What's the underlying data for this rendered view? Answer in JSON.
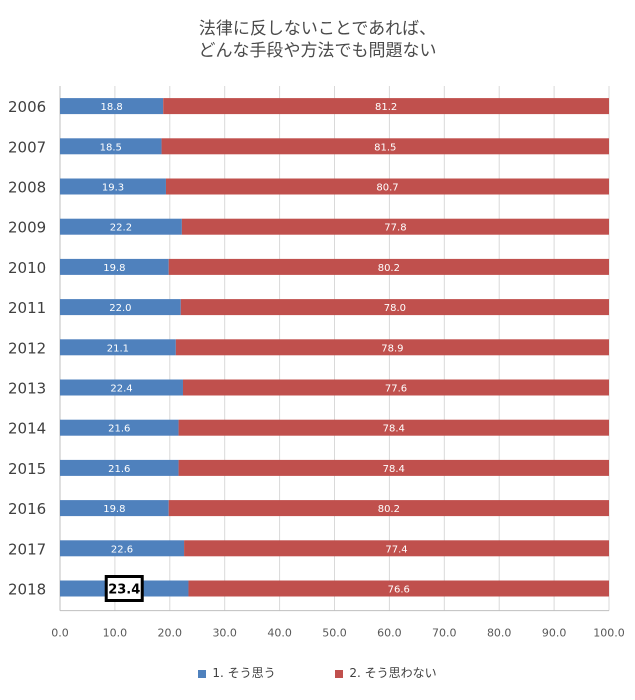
{
  "chart_data": {
    "type": "bar",
    "orientation": "horizontal",
    "stacked": true,
    "title": [
      "法律に反しないことであれば、",
      "どんな手段や方法でも問題ない"
    ],
    "categories": [
      "2006",
      "2007",
      "2008",
      "2009",
      "2010",
      "2011",
      "2012",
      "2013",
      "2014",
      "2015",
      "2016",
      "2017",
      "2018"
    ],
    "series": [
      {
        "name": "1. そう思う",
        "color": "#4f81bd",
        "values": [
          18.8,
          18.5,
          19.3,
          22.2,
          19.8,
          22.0,
          21.1,
          22.4,
          21.6,
          21.6,
          19.8,
          22.6,
          23.4
        ],
        "labels": [
          "18.8",
          "18.5",
          "19.3",
          "22.2",
          "19.8",
          "22.0",
          "21.1",
          "22.4",
          "21.6",
          "21.6",
          "19.8",
          "22.6",
          "23.4"
        ]
      },
      {
        "name": "2. そう思わない",
        "color": "#c0504d",
        "values": [
          81.2,
          81.5,
          80.7,
          77.8,
          80.2,
          78.0,
          78.9,
          77.6,
          78.4,
          78.4,
          80.2,
          77.4,
          76.6
        ],
        "labels": [
          "81.2",
          "81.5",
          "80.7",
          "77.8",
          "80.2",
          "78.0",
          "78.9",
          "77.6",
          "78.4",
          "78.4",
          "80.2",
          "77.4",
          "76.6"
        ]
      }
    ],
    "xlim": [
      0,
      100
    ],
    "xticks": [
      "0.0",
      "10.0",
      "20.0",
      "30.0",
      "40.0",
      "50.0",
      "60.0",
      "70.0",
      "80.0",
      "90.0",
      "100.0"
    ],
    "highlighted_label": {
      "category": "2018",
      "series": "1. そう思う"
    },
    "legend_position": "bottom"
  }
}
